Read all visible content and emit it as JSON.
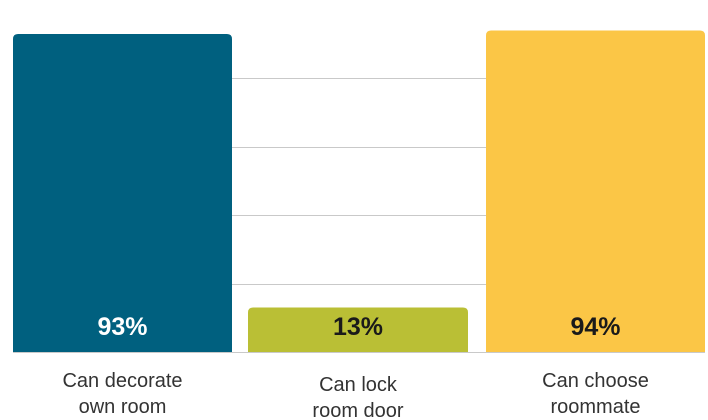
{
  "chart_data": {
    "type": "bar",
    "categories": [
      [
        "Can decorate",
        "own room"
      ],
      [
        "Can lock",
        "room door"
      ],
      [
        "Can choose",
        "roommate"
      ]
    ],
    "values": [
      93,
      13,
      94
    ],
    "value_labels": [
      "93%",
      "13%",
      "94%"
    ],
    "colors": [
      "#00607F",
      "#BABF35",
      "#FBC646"
    ],
    "label_colors": [
      "#FFFFFF",
      "#1A1A1A",
      "#1A1A1A"
    ],
    "ylim": [
      0,
      100
    ],
    "grid": true,
    "title": "",
    "xlabel": "",
    "ylabel": ""
  }
}
